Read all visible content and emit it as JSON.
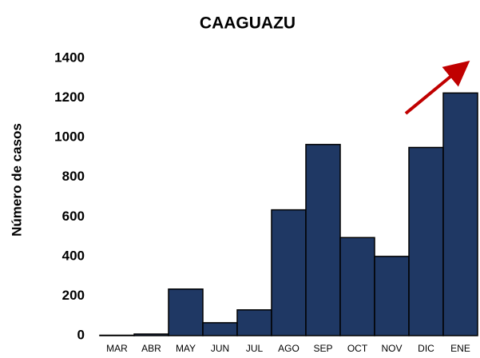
{
  "chart_data": {
    "type": "bar",
    "title": "CAAGUAZU",
    "y_label": "Número de casos",
    "categories": [
      "MAR",
      "ABR",
      "MAY",
      "JUN",
      "JUL",
      "AGO",
      "SEP",
      "OCT",
      "NOV",
      "DIC",
      "ENE"
    ],
    "values": [
      2,
      8,
      235,
      65,
      130,
      635,
      965,
      495,
      400,
      950,
      1225
    ],
    "color": "#1f3864",
    "ylim": [
      0,
      1400
    ],
    "yticks": [
      0,
      200,
      400,
      600,
      800,
      1000,
      1200,
      1400
    ],
    "grid": false
  }
}
